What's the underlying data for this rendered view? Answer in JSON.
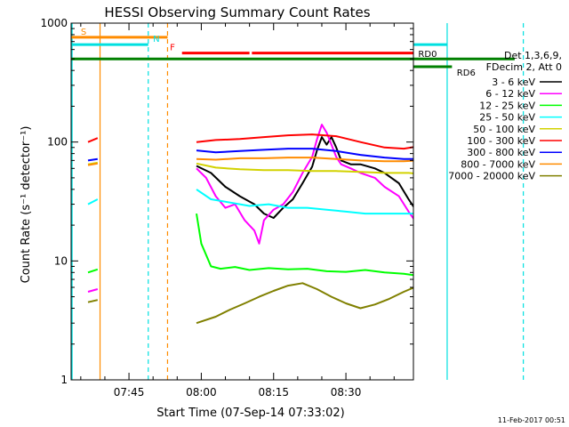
{
  "chart_data": {
    "type": "line",
    "title": "HESSI Observing Summary Count Rates",
    "xlabel": "Start Time (07-Sep-14 07:33:02)",
    "ylabel": "Count Rate (s⁻¹ detector⁻¹)",
    "y_scale": "log",
    "ylim": [
      1,
      1000
    ],
    "xlim_minutes_after_0700": [
      33.0,
      104.0
    ],
    "y_ticks": [
      "1",
      "10",
      "100",
      "1000"
    ],
    "x_ticks": [
      {
        "label": "07:45",
        "value": 45
      },
      {
        "label": "08:00",
        "value": 60
      },
      {
        "label": "08:15",
        "value": 75
      },
      {
        "label": "08:30",
        "value": 90
      },
      {
        "label": "08:45",
        "value": 105
      },
      {
        "label": "09:00",
        "value": 120
      }
    ],
    "legend_header": [
      "Det 1,3,6,9,",
      "FDecim 2, Att 0"
    ],
    "legend_placement": "right",
    "series": [
      {
        "name": "3 - 6 keV",
        "color": "#000000",
        "segments": [
          [
            [
              59,
              63
            ],
            [
              62,
              55
            ],
            [
              65,
              42
            ],
            [
              68,
              35
            ],
            [
              71,
              30
            ],
            [
              73,
              25
            ],
            [
              75,
              23
            ],
            [
              77,
              28
            ],
            [
              79,
              33
            ],
            [
              81,
              45
            ],
            [
              83,
              62
            ],
            [
              84,
              85
            ],
            [
              85,
              110
            ],
            [
              86,
              95
            ],
            [
              87,
              110
            ],
            [
              88,
              90
            ],
            [
              89,
              70
            ],
            [
              91,
              65
            ],
            [
              93,
              65
            ],
            [
              96,
              60
            ],
            [
              98,
              55
            ],
            [
              101,
              45
            ],
            [
              103,
              33
            ],
            [
              105,
              25
            ],
            [
              106,
              1.5
            ]
          ],
          [
            [
              116,
              1.3
            ],
            [
              118,
              1.6
            ],
            [
              120,
              1.2
            ]
          ]
        ]
      },
      {
        "name": "6 - 12 keV",
        "color": "#ff00ff",
        "segments": [
          [
            [
              36.5,
              5.5
            ],
            [
              38.5,
              5.8
            ]
          ],
          [
            [
              59,
              60
            ],
            [
              61,
              50
            ],
            [
              63,
              35
            ],
            [
              65,
              28
            ],
            [
              67,
              30
            ],
            [
              69,
              22
            ],
            [
              71,
              18
            ],
            [
              72,
              14
            ],
            [
              73,
              22
            ],
            [
              75,
              27
            ],
            [
              77,
              30
            ],
            [
              79,
              38
            ],
            [
              81,
              55
            ],
            [
              83,
              75
            ],
            [
              84,
              105
            ],
            [
              85,
              140
            ],
            [
              86,
              120
            ],
            [
              87,
              95
            ],
            [
              88,
              75
            ],
            [
              89,
              65
            ],
            [
              91,
              60
            ],
            [
              93,
              55
            ],
            [
              96,
              50
            ],
            [
              98,
              42
            ],
            [
              101,
              35
            ],
            [
              103,
              26
            ],
            [
              105,
              20
            ]
          ],
          [
            [
              115,
              6.2
            ],
            [
              116.5,
              5.5
            ],
            [
              118.5,
              6.5
            ],
            [
              120.5,
              5.5
            ],
            [
              122.5,
              5.5
            ],
            [
              125.5,
              5.0
            ]
          ]
        ]
      },
      {
        "name": "12 - 25 keV",
        "color": "#00ff00",
        "segments": [
          [
            [
              36.5,
              8.0
            ],
            [
              38.5,
              8.5
            ]
          ],
          [
            [
              59,
              25
            ],
            [
              60,
              14
            ],
            [
              62,
              9.0
            ],
            [
              64,
              8.6
            ],
            [
              67,
              8.9
            ],
            [
              70,
              8.4
            ],
            [
              74,
              8.7
            ],
            [
              78,
              8.5
            ],
            [
              82,
              8.6
            ],
            [
              86,
              8.2
            ],
            [
              90,
              8.1
            ],
            [
              94,
              8.4
            ],
            [
              98,
              8.0
            ],
            [
              102,
              7.8
            ],
            [
              105,
              7.5
            ]
          ],
          [
            [
              115,
              7.8
            ],
            [
              117,
              7.0
            ],
            [
              120,
              7.5
            ],
            [
              122.5,
              7.2
            ],
            [
              125.5,
              7.0
            ]
          ]
        ]
      },
      {
        "name": "25 - 50 keV",
        "color": "#00ffff",
        "segments": [
          [
            [
              36.5,
              30
            ],
            [
              38.5,
              33
            ]
          ],
          [
            [
              59,
              40
            ],
            [
              62,
              33
            ],
            [
              66,
              31
            ],
            [
              70,
              29
            ],
            [
              74,
              30
            ],
            [
              78,
              28
            ],
            [
              82,
              28
            ],
            [
              86,
              27
            ],
            [
              90,
              26
            ],
            [
              94,
              25
            ],
            [
              98,
              25
            ],
            [
              102,
              25
            ],
            [
              105,
              25
            ]
          ],
          [
            [
              122.5,
              30
            ],
            [
              125.5,
              32
            ]
          ]
        ]
      },
      {
        "name": "50 - 100 keV",
        "color": "#d2d200",
        "segments": [
          [
            [
              36.5,
              65
            ],
            [
              38.5,
              67
            ]
          ],
          [
            [
              59,
              66
            ],
            [
              63,
              61
            ],
            [
              68,
              59
            ],
            [
              73,
              58
            ],
            [
              78,
              58
            ],
            [
              83,
              57
            ],
            [
              88,
              57
            ],
            [
              93,
              56
            ],
            [
              98,
              55
            ],
            [
              103,
              55
            ],
            [
              105,
              54
            ]
          ],
          [
            [
              115,
              16
            ],
            [
              118,
              15
            ],
            [
              120,
              16
            ]
          ]
        ]
      },
      {
        "name": "100 - 300 keV",
        "color": "#ff0000",
        "segments": [
          [
            [
              36.5,
              100
            ],
            [
              38.5,
              108
            ]
          ],
          [
            [
              59,
              100
            ],
            [
              63,
              104
            ],
            [
              68,
              106
            ],
            [
              73,
              110
            ],
            [
              78,
              114
            ],
            [
              83,
              116
            ],
            [
              88,
              112
            ],
            [
              93,
              100
            ],
            [
              98,
              90
            ],
            [
              102,
              88
            ],
            [
              105,
              92
            ]
          ],
          [
            [
              115,
              24
            ],
            [
              118,
              25
            ],
            [
              120,
              26
            ]
          ],
          [
            [
              122.5,
              110
            ],
            [
              125.5,
              106
            ]
          ]
        ]
      },
      {
        "name": "300 - 800 keV",
        "color": "#0000ff",
        "segments": [
          [
            [
              36.5,
              70
            ],
            [
              38.5,
              72
            ]
          ],
          [
            [
              59,
              85
            ],
            [
              63,
              82
            ],
            [
              68,
              84
            ],
            [
              73,
              86
            ],
            [
              78,
              88
            ],
            [
              83,
              88
            ],
            [
              88,
              84
            ],
            [
              93,
              78
            ],
            [
              98,
              74
            ],
            [
              102,
              72
            ],
            [
              105,
              72
            ]
          ],
          [
            [
              115,
              65
            ],
            [
              119,
              66
            ],
            [
              122.5,
              68
            ],
            [
              125.5,
              70
            ]
          ]
        ]
      },
      {
        "name": "800 - 7000 keV",
        "color": "#ff8c00",
        "segments": [
          [
            [
              36.5,
              64
            ],
            [
              38.5,
              66
            ]
          ],
          [
            [
              59,
              72
            ],
            [
              63,
              71
            ],
            [
              68,
              73
            ],
            [
              73,
              73
            ],
            [
              78,
              74
            ],
            [
              83,
              74
            ],
            [
              88,
              72
            ],
            [
              93,
              70
            ],
            [
              98,
              69
            ],
            [
              102,
              69
            ],
            [
              105,
              70
            ]
          ],
          [
            [
              115,
              72
            ],
            [
              119,
              75
            ],
            [
              122.5,
              75
            ],
            [
              125.5,
              74
            ]
          ]
        ]
      },
      {
        "name": "7000 - 20000 keV",
        "color": "#808000",
        "segments": [
          [
            [
              36.5,
              4.5
            ],
            [
              38.5,
              4.7
            ]
          ],
          [
            [
              59,
              3.0
            ],
            [
              63,
              3.4
            ],
            [
              66,
              3.9
            ],
            [
              69,
              4.4
            ],
            [
              72,
              5.0
            ],
            [
              75,
              5.6
            ],
            [
              78,
              6.2
            ],
            [
              81,
              6.5
            ],
            [
              84,
              5.8
            ],
            [
              87,
              5.0
            ],
            [
              90,
              4.4
            ],
            [
              93,
              4.0
            ],
            [
              96,
              4.3
            ],
            [
              99,
              4.8
            ],
            [
              102,
              5.5
            ],
            [
              105,
              6.2
            ]
          ],
          [
            [
              115,
              7.0
            ],
            [
              118,
              8.5
            ],
            [
              120,
              9.4
            ],
            [
              122.5,
              8.8
            ],
            [
              125.5,
              8.0
            ]
          ]
        ]
      }
    ],
    "vertical_lines": [
      {
        "x": 33.2,
        "color": "#00e0e0",
        "style": "solid"
      },
      {
        "x": 39.0,
        "color": "#ff8c00",
        "style": "solid"
      },
      {
        "x": 49.0,
        "color": "#00e0e0",
        "style": "dashed"
      },
      {
        "x": 53.0,
        "color": "#ff8c00",
        "style": "dashed"
      },
      {
        "x": 111.0,
        "color": "#00e0e0",
        "style": "solid"
      },
      {
        "x": 126.8,
        "color": "#00e0e0",
        "style": "dashed"
      }
    ],
    "flag_bars": [
      {
        "label": "S",
        "color": "#ff8c00",
        "y": 760,
        "start": 33.0,
        "end": 53.0,
        "label_x": 35.0
      },
      {
        "label": "N",
        "color": "#00e0e0",
        "y": 660,
        "start": 33.0,
        "end": 49.0,
        "label_x": 50.0
      },
      {
        "label": "F",
        "color": "#ff0000",
        "y": 560,
        "start": 56.0,
        "end": 70.0,
        "label_x": 53.5
      },
      {
        "label": "",
        "color": "#ff0000",
        "y": 560,
        "start": 70.5,
        "end": 106.0
      },
      {
        "label": "",
        "color": "#00e0e0",
        "y": 660,
        "start": 111.0,
        "end": 127.5
      },
      {
        "label": "RD0",
        "color": "#008000",
        "y": 500,
        "start": 33.0,
        "end": 112.0,
        "label_x": 105.0
      },
      {
        "label": "",
        "color": "#008000",
        "y": 500,
        "start": 125.0,
        "end": 128.0
      },
      {
        "label": "RD6",
        "color": "#008000",
        "y": 430,
        "start": 112.0,
        "end": 120.0,
        "label_x": 113.0
      }
    ]
  },
  "footer": {
    "date_stamp": "11-Feb-2017 00:51"
  }
}
